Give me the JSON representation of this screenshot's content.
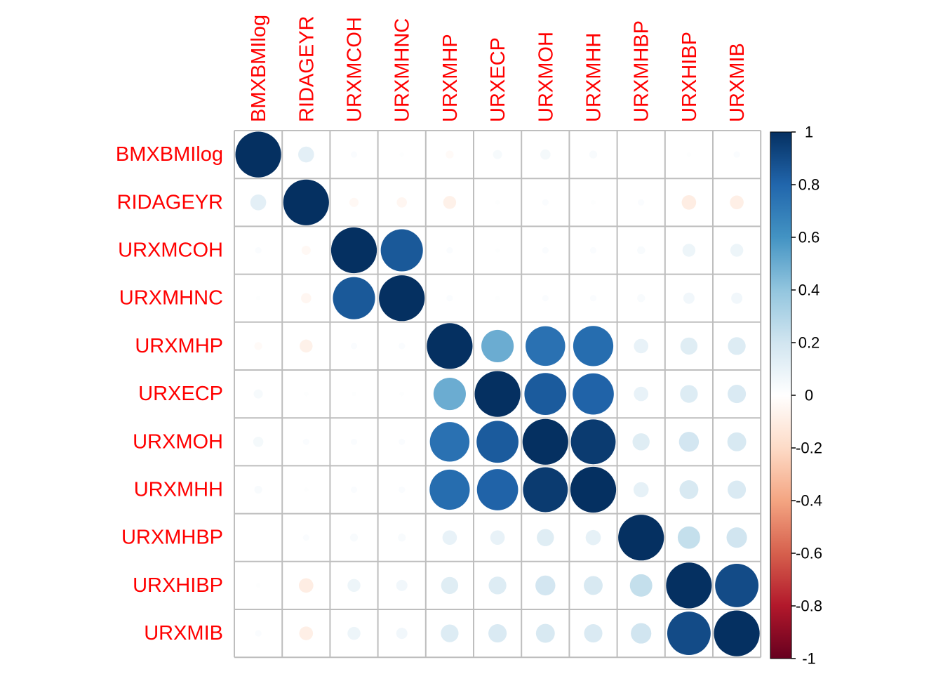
{
  "chart_data": {
    "type": "heatmap",
    "variables": [
      "BMXBMIlog",
      "RIDAGEYR",
      "URXMCOH",
      "URXMHNC",
      "URXMHP",
      "URXECP",
      "URXMOH",
      "URXMHH",
      "URXMHBP",
      "URXHIBP",
      "URXMIB"
    ],
    "matrix": [
      [
        1.0,
        0.12,
        0.02,
        0.01,
        -0.03,
        0.04,
        0.05,
        0.03,
        0.0,
        0.01,
        0.02
      ],
      [
        0.12,
        1.0,
        -0.04,
        -0.05,
        -0.08,
        0.01,
        0.02,
        0.01,
        0.02,
        -0.1,
        -0.09
      ],
      [
        0.02,
        -0.04,
        1.0,
        0.85,
        0.02,
        0.01,
        0.02,
        0.02,
        0.03,
        0.08,
        0.08
      ],
      [
        0.01,
        -0.05,
        0.85,
        1.0,
        0.02,
        0.01,
        0.02,
        0.02,
        0.03,
        0.06,
        0.06
      ],
      [
        -0.03,
        -0.08,
        0.02,
        0.02,
        1.0,
        0.5,
        0.75,
        0.77,
        0.1,
        0.14,
        0.15
      ],
      [
        0.04,
        0.01,
        0.01,
        0.01,
        0.5,
        1.0,
        0.84,
        0.81,
        0.1,
        0.15,
        0.16
      ],
      [
        0.05,
        0.02,
        0.02,
        0.02,
        0.75,
        0.84,
        1.0,
        0.96,
        0.14,
        0.19,
        0.17
      ],
      [
        0.03,
        0.01,
        0.02,
        0.02,
        0.77,
        0.81,
        0.96,
        1.0,
        0.11,
        0.17,
        0.16
      ],
      [
        0.0,
        0.02,
        0.03,
        0.03,
        0.1,
        0.1,
        0.14,
        0.11,
        1.0,
        0.24,
        0.2
      ],
      [
        0.01,
        -0.1,
        0.08,
        0.06,
        0.14,
        0.15,
        0.19,
        0.17,
        0.24,
        1.0,
        0.9
      ],
      [
        0.02,
        -0.09,
        0.08,
        0.06,
        0.15,
        0.16,
        0.17,
        0.16,
        0.2,
        0.9,
        1.0
      ]
    ],
    "colorbar_ticks": [
      "1",
      "0.8",
      "0.6",
      "0.4",
      "0.2",
      "0",
      "-0.2",
      "-0.4",
      "-0.6",
      "-0.8",
      "-1"
    ],
    "range": [
      -1,
      1
    ],
    "palette": [
      "#67001F",
      "#B2182B",
      "#D6604D",
      "#F4A582",
      "#FDDBC7",
      "#FFFFFF",
      "#D1E5F0",
      "#92C5DE",
      "#4393C3",
      "#2166AC",
      "#053061"
    ],
    "label_color": "#ff0000",
    "grid_color": "#bebebe"
  }
}
